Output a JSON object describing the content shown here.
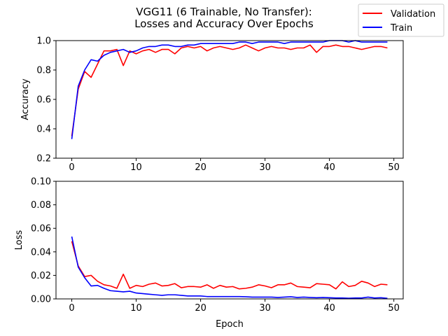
{
  "title_line1": "VGG11 (6 Trainable, No Transfer):",
  "title_line2": "Losses and Accuracy Over Epochs",
  "colors": {
    "validation": "#ff0000",
    "train": "#0000ff"
  },
  "legend": [
    {
      "name": "Validation",
      "color": "#ff0000"
    },
    {
      "name": "Train",
      "color": "#0000ff"
    }
  ],
  "chart_data": [
    {
      "type": "line",
      "ylabel": "Accuracy",
      "xlabel": "",
      "xlim": [
        -2.45,
        51.45
      ],
      "ylim": [
        0.2,
        1.0
      ],
      "xticks": [
        0,
        10,
        20,
        30,
        40,
        50
      ],
      "yticks": [
        0.2,
        0.4,
        0.6,
        0.8,
        1.0
      ],
      "ytick_labels": [
        "0.2",
        "0.4",
        "0.6",
        "0.8",
        "1.0"
      ],
      "series": [
        {
          "name": "Validation",
          "color": "#ff0000",
          "values": [
            0.35,
            0.67,
            0.79,
            0.75,
            0.84,
            0.93,
            0.93,
            0.94,
            0.83,
            0.93,
            0.91,
            0.93,
            0.94,
            0.92,
            0.94,
            0.94,
            0.91,
            0.95,
            0.96,
            0.95,
            0.96,
            0.93,
            0.95,
            0.96,
            0.95,
            0.94,
            0.95,
            0.97,
            0.95,
            0.93,
            0.95,
            0.96,
            0.95,
            0.95,
            0.94,
            0.95,
            0.95,
            0.97,
            0.92,
            0.96,
            0.96,
            0.97,
            0.96,
            0.96,
            0.95,
            0.94,
            0.95,
            0.96,
            0.96,
            0.95
          ]
        },
        {
          "name": "Train",
          "color": "#0000ff",
          "values": [
            0.33,
            0.69,
            0.8,
            0.87,
            0.86,
            0.9,
            0.92,
            0.93,
            0.94,
            0.92,
            0.93,
            0.95,
            0.96,
            0.96,
            0.97,
            0.97,
            0.96,
            0.96,
            0.97,
            0.97,
            0.98,
            0.98,
            0.98,
            0.98,
            0.98,
            0.98,
            0.99,
            0.99,
            0.98,
            0.99,
            0.99,
            0.99,
            0.99,
            0.98,
            0.99,
            0.99,
            0.99,
            0.99,
            0.99,
            0.99,
            1.0,
            1.0,
            1.0,
            0.99,
            1.0,
            0.99,
            0.99,
            0.99,
            0.99,
            0.99
          ]
        }
      ]
    },
    {
      "type": "line",
      "ylabel": "Loss",
      "xlabel": "Epoch",
      "xlim": [
        -2.45,
        51.45
      ],
      "ylim": [
        0.0,
        0.1
      ],
      "xticks": [
        0,
        10,
        20,
        30,
        40,
        50
      ],
      "yticks": [
        0.0,
        0.02,
        0.04,
        0.06,
        0.08,
        0.1
      ],
      "ytick_labels": [
        "0.00",
        "0.02",
        "0.04",
        "0.06",
        "0.08",
        "0.10"
      ],
      "series": [
        {
          "name": "Validation",
          "color": "#ff0000",
          "values": [
            0.049,
            0.028,
            0.019,
            0.02,
            0.015,
            0.012,
            0.011,
            0.009,
            0.021,
            0.009,
            0.0115,
            0.0105,
            0.0125,
            0.0135,
            0.011,
            0.0115,
            0.013,
            0.0095,
            0.0105,
            0.0105,
            0.01,
            0.012,
            0.009,
            0.0115,
            0.01,
            0.0105,
            0.0085,
            0.009,
            0.01,
            0.012,
            0.011,
            0.0095,
            0.012,
            0.012,
            0.0135,
            0.0105,
            0.01,
            0.0095,
            0.013,
            0.0125,
            0.012,
            0.0085,
            0.0145,
            0.0105,
            0.0115,
            0.015,
            0.0135,
            0.0105,
            0.0125,
            0.012
          ]
        },
        {
          "name": "Train",
          "color": "#0000ff",
          "values": [
            0.053,
            0.027,
            0.018,
            0.011,
            0.0115,
            0.009,
            0.007,
            0.0065,
            0.006,
            0.0065,
            0.005,
            0.0045,
            0.004,
            0.0035,
            0.003,
            0.0035,
            0.0035,
            0.003,
            0.0025,
            0.0025,
            0.0025,
            0.002,
            0.002,
            0.002,
            0.002,
            0.002,
            0.002,
            0.0018,
            0.0015,
            0.0015,
            0.0015,
            0.0015,
            0.0012,
            0.0015,
            0.0018,
            0.0012,
            0.0015,
            0.0012,
            0.001,
            0.0012,
            0.001,
            0.0008,
            0.0008,
            0.0006,
            0.0008,
            0.0008,
            0.0015,
            0.0008,
            0.001,
            0.0005
          ]
        }
      ]
    }
  ]
}
